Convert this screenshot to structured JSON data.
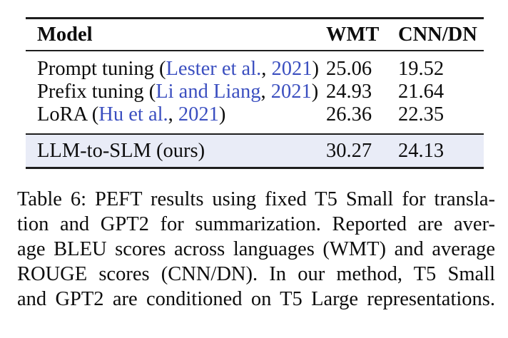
{
  "table": {
    "columns": [
      {
        "label": "Model"
      },
      {
        "label": "WMT"
      },
      {
        "label": "CNN/DN"
      }
    ],
    "rows": [
      {
        "model_prefix": "Prompt tuning (",
        "citation_authors": "Lester et al.",
        "citation_sep": ", ",
        "citation_year": "2021",
        "model_suffix": ")",
        "wmt": "25.06",
        "cnn_dn": "19.52"
      },
      {
        "model_prefix": "Prefix tuning (",
        "citation_authors": "Li and Liang",
        "citation_sep": ", ",
        "citation_year": "2021",
        "model_suffix": ")",
        "wmt": "24.93",
        "cnn_dn": "21.64"
      },
      {
        "model_prefix": "LoRA (",
        "citation_authors": "Hu et al.",
        "citation_sep": ", ",
        "citation_year": "2021",
        "model_suffix": ")",
        "wmt": "26.36",
        "cnn_dn": "22.35"
      }
    ],
    "highlight_row": {
      "model": "LLM-to-SLM (ours)",
      "wmt": "30.27",
      "cnn_dn": "24.13"
    },
    "colors": {
      "citation_link": "#3b4fc0",
      "highlight_bg": "#e9ecf7",
      "rule": "#1e1e1e",
      "text": "#0d0d0d"
    }
  },
  "caption": {
    "lines": [
      "Table 6: PEFT results using fixed T5 Small for transla-",
      "tion and GPT2 for summarization. Reported are aver-",
      "age BLEU scores across languages (WMT) and average",
      "ROUGE scores (CNN/DN). In our method, T5 Small",
      "and GPT2 are conditioned on T5 Large representations."
    ]
  }
}
